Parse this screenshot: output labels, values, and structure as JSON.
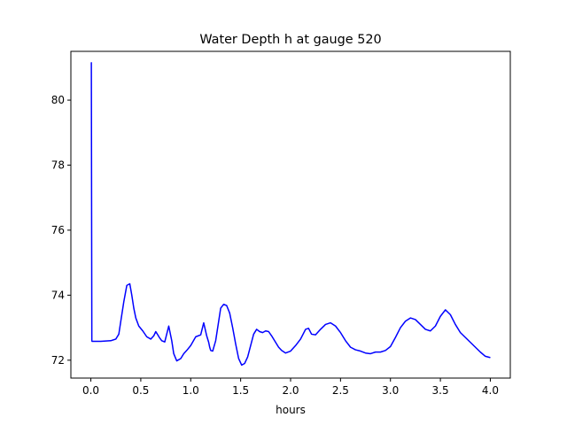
{
  "chart_data": {
    "type": "line",
    "title": "Water Depth h at gauge 520",
    "xlabel": "hours",
    "ylabel": "",
    "xlim": [
      -0.2,
      4.2
    ],
    "ylim": [
      71.45,
      81.5
    ],
    "x_ticks": [
      0.0,
      0.5,
      1.0,
      1.5,
      2.0,
      2.5,
      3.0,
      3.5,
      4.0
    ],
    "x_tick_labels": [
      "0.0",
      "0.5",
      "1.0",
      "1.5",
      "2.0",
      "2.5",
      "3.0",
      "3.5",
      "4.0"
    ],
    "y_ticks": [
      72,
      74,
      76,
      78,
      80
    ],
    "y_tick_labels": [
      "72",
      "74",
      "76",
      "78",
      "80"
    ],
    "grid": false,
    "series": [
      {
        "color": "#0000ff",
        "x": [
          0.0,
          0.005,
          0.01,
          0.012,
          0.1,
          0.2,
          0.25,
          0.28,
          0.3,
          0.33,
          0.36,
          0.39,
          0.41,
          0.43,
          0.45,
          0.48,
          0.52,
          0.56,
          0.6,
          0.63,
          0.65,
          0.67,
          0.69,
          0.71,
          0.74,
          0.78,
          0.81,
          0.83,
          0.86,
          0.9,
          0.93,
          0.96,
          1.0,
          1.05,
          1.1,
          1.13,
          1.16,
          1.18,
          1.19,
          1.2,
          1.22,
          1.25,
          1.28,
          1.3,
          1.33,
          1.36,
          1.39,
          1.42,
          1.45,
          1.48,
          1.51,
          1.54,
          1.57,
          1.6,
          1.63,
          1.66,
          1.69,
          1.72,
          1.75,
          1.78,
          1.81,
          1.85,
          1.88,
          1.91,
          1.95,
          2.0,
          2.05,
          2.1,
          2.15,
          2.18,
          2.21,
          2.25,
          2.3,
          2.35,
          2.4,
          2.45,
          2.5,
          2.55,
          2.6,
          2.65,
          2.7,
          2.75,
          2.8,
          2.85,
          2.87,
          2.9,
          2.95,
          3.0,
          3.05,
          3.1,
          3.15,
          3.2,
          3.25,
          3.3,
          3.35,
          3.4,
          3.45,
          3.5,
          3.55,
          3.6,
          3.65,
          3.7,
          3.75,
          3.8,
          3.85,
          3.9,
          3.95,
          4.0
        ],
        "values": [
          81.15,
          81.15,
          72.6,
          72.58,
          72.58,
          72.6,
          72.65,
          72.8,
          73.2,
          73.8,
          74.3,
          74.35,
          74.0,
          73.6,
          73.3,
          73.05,
          72.9,
          72.72,
          72.65,
          72.75,
          72.88,
          72.78,
          72.68,
          72.6,
          72.56,
          73.05,
          72.6,
          72.2,
          71.98,
          72.05,
          72.2,
          72.3,
          72.45,
          72.72,
          72.78,
          73.15,
          72.75,
          72.55,
          72.4,
          72.3,
          72.28,
          72.6,
          73.2,
          73.6,
          73.72,
          73.68,
          73.45,
          73.0,
          72.5,
          72.05,
          71.85,
          71.9,
          72.1,
          72.45,
          72.8,
          72.95,
          72.88,
          72.85,
          72.9,
          72.88,
          72.75,
          72.55,
          72.4,
          72.3,
          72.22,
          72.28,
          72.45,
          72.65,
          72.95,
          72.98,
          72.8,
          72.78,
          72.95,
          73.1,
          73.15,
          73.05,
          72.85,
          72.6,
          72.4,
          72.32,
          72.28,
          72.22,
          72.2,
          72.25,
          72.25,
          72.25,
          72.3,
          72.42,
          72.7,
          73.0,
          73.2,
          73.3,
          73.25,
          73.1,
          72.95,
          72.9,
          73.05,
          73.35,
          73.55,
          73.4,
          73.1,
          72.85,
          72.7,
          72.55,
          72.4,
          72.25,
          72.12,
          72.08
        ]
      }
    ]
  }
}
